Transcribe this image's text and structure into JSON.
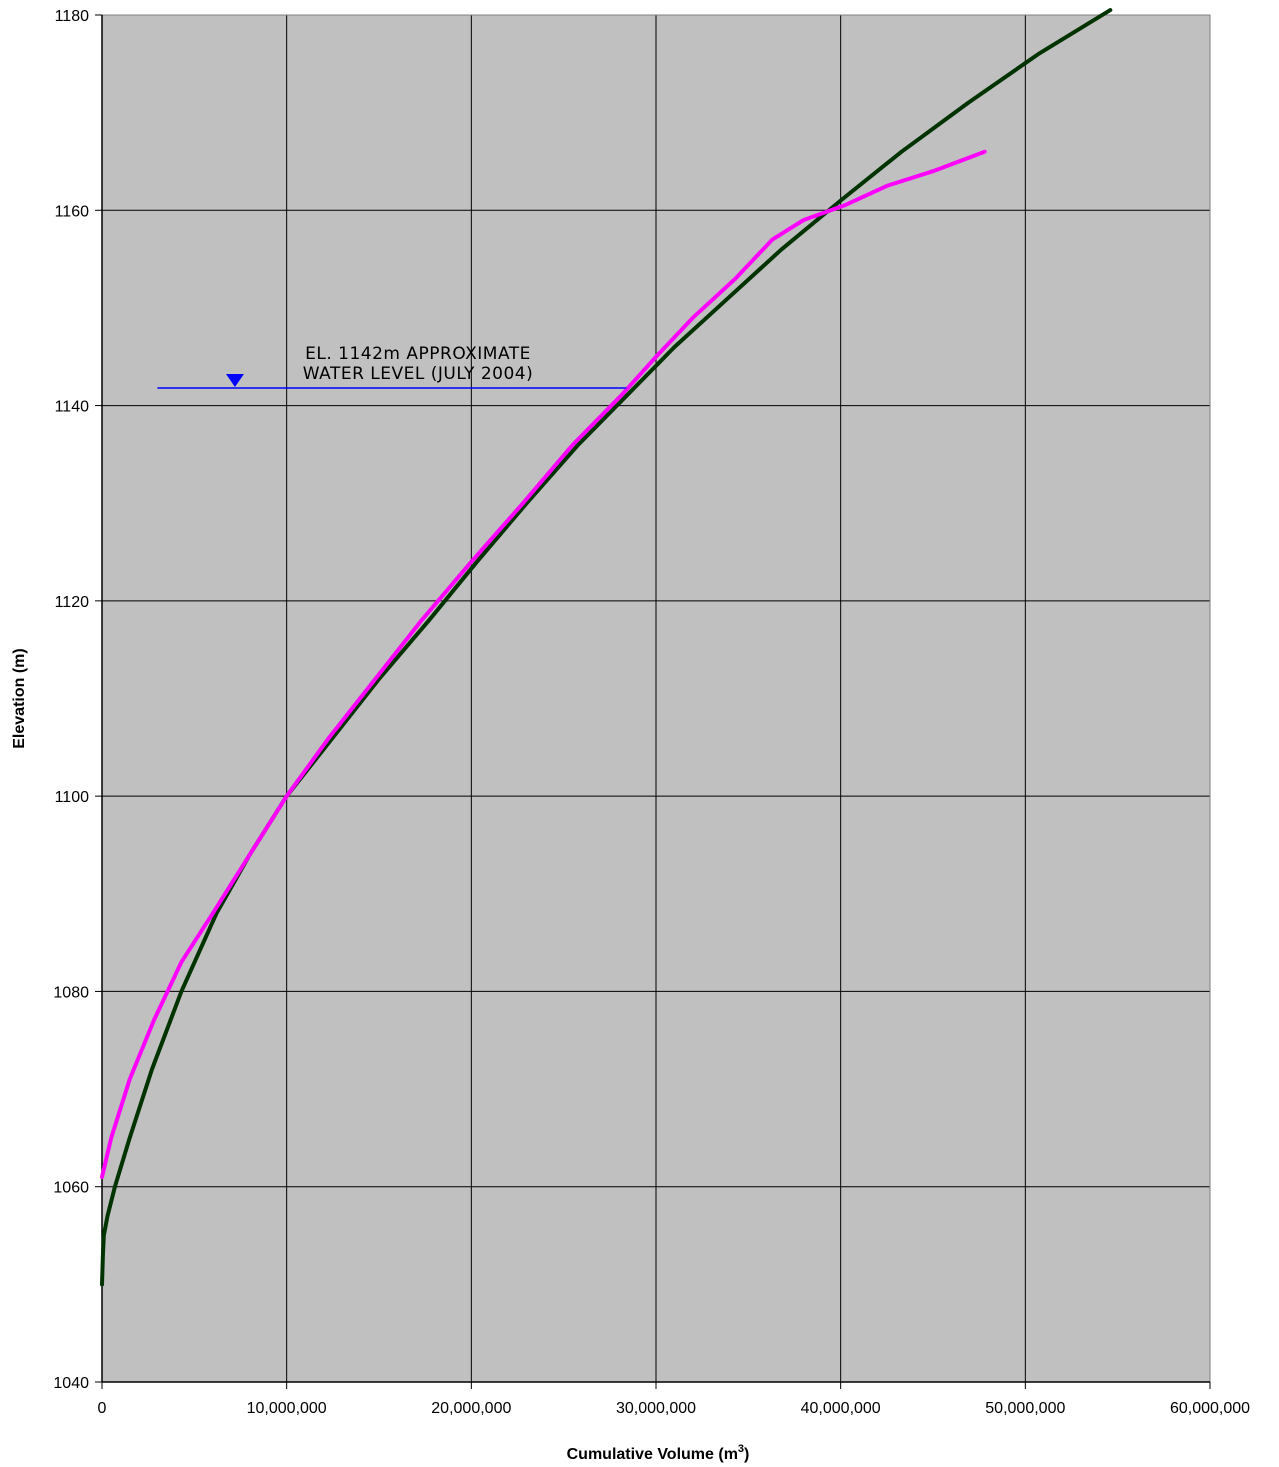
{
  "chart_data": {
    "type": "line",
    "xlabel": "Cumulative Volume (m",
    "xlabel_sup": "3",
    "xlabel_suffix": ")",
    "ylabel": "Elevation (m)",
    "xlim": [
      0,
      60000000
    ],
    "ylim": [
      1040,
      1180
    ],
    "x_ticks": [
      0,
      10000000,
      20000000,
      30000000,
      40000000,
      50000000,
      60000000
    ],
    "x_tick_labels": [
      "0",
      "10,000,000",
      "20,000,000",
      "30,000,000",
      "40,000,000",
      "50,000,000",
      "60,000,000"
    ],
    "y_ticks": [
      1040,
      1060,
      1080,
      1100,
      1120,
      1140,
      1160,
      1180
    ],
    "y_tick_labels": [
      "1040",
      "1060",
      "1080",
      "1100",
      "1120",
      "1140",
      "1160",
      "1180"
    ],
    "grid": true,
    "plot_background": "#c0c0c0",
    "grid_color": "#000000",
    "series": [
      {
        "color": "#003300",
        "x": [
          0,
          50000,
          100000,
          300000,
          700000,
          1500000,
          2700000,
          4300000,
          6200000,
          8000000,
          10000000,
          12500000,
          15000000,
          17700000,
          20300000,
          23000000,
          25800000,
          28400000,
          31000000,
          33900000,
          36800000,
          40000000,
          43300000,
          46900000,
          50700000,
          54600000
        ],
        "y": [
          1050,
          1053,
          1055,
          1057,
          1060,
          1065,
          1072,
          1080,
          1088,
          1094,
          1100,
          1106,
          1112,
          1118,
          1124,
          1130,
          1136,
          1141,
          1146,
          1151,
          1156,
          1161,
          1166,
          1171,
          1176,
          1180.5
        ]
      },
      {
        "color": "#ff00ff",
        "x": [
          0,
          500000,
          1500000,
          2800000,
          4300000,
          6000000,
          8000000,
          10000000,
          12300000,
          14800000,
          17300000,
          20000000,
          22800000,
          25500000,
          28100000,
          30000000,
          32000000,
          34300000,
          36300000,
          38000000,
          40200000,
          42500000,
          45000000,
          47800000
        ],
        "y": [
          1061,
          1065,
          1071,
          1077,
          1083,
          1088,
          1094,
          1100,
          1106,
          1112,
          1118,
          1124,
          1130,
          1136,
          1141,
          1145,
          1149,
          1153,
          1157,
          1159,
          1160.5,
          1162.5,
          1164,
          1166
        ]
      }
    ],
    "annotations": [
      {
        "line1": "EL. 1142m APPROXIMATE",
        "line2": "WATER LEVEL (JULY 2004)",
        "elevation": 1141.8,
        "x_start": 3000000,
        "x_end": 28400000,
        "marker_x": 7200000,
        "color": "#0000ff"
      }
    ]
  }
}
